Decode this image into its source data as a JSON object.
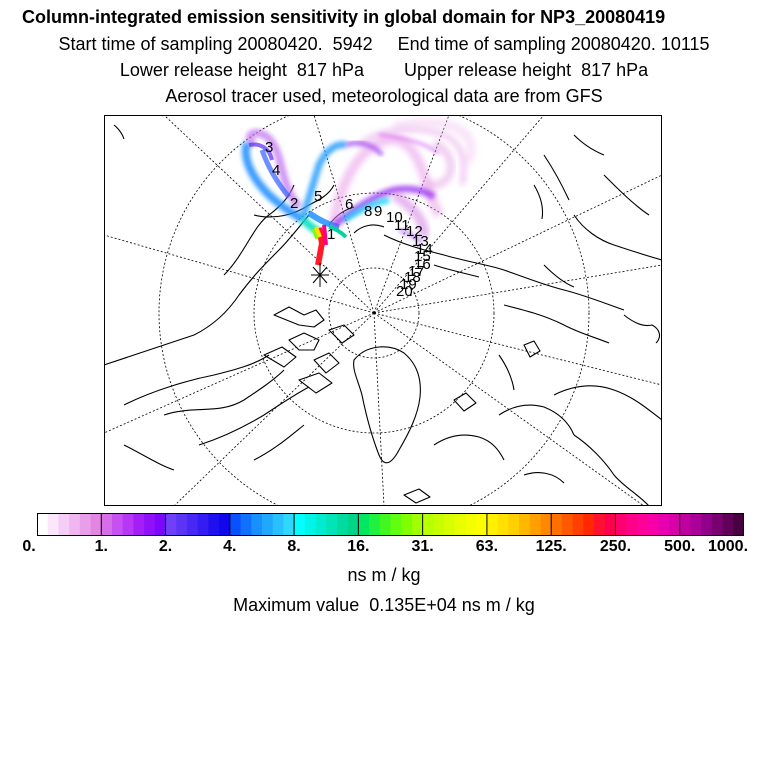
{
  "header": {
    "title": "Column-integrated emission sensitivity in global domain for NP3_20080419",
    "sampling": "Start time of sampling 20080420.  5942     End time of sampling 20080420. 10115",
    "release": "Lower release height  817 hPa        Upper release height  817 hPa",
    "tracer": "Aerosol tracer used, meteorological data are from GFS"
  },
  "colorbar": {
    "ticks": [
      "0.",
      "1.",
      "2.",
      "4.",
      "8.",
      "16.",
      "31.",
      "63.",
      "125.",
      "250.",
      "500.",
      "1000."
    ],
    "colors": [
      "#ffffff",
      "#fbe6fb",
      "#f5cef5",
      "#efb6ef",
      "#e89ee8",
      "#e286e2",
      "#d66ee8",
      "#c650f0",
      "#b836f5",
      "#a41ef8",
      "#9010fa",
      "#7a08fc",
      "#7040f8",
      "#5c34f6",
      "#4828f4",
      "#341cf2",
      "#2010f0",
      "#1008ea",
      "#0a50ff",
      "#1070ff",
      "#1890ff",
      "#20a8ff",
      "#28c0ff",
      "#30d8ff",
      "#00ffff",
      "#00f4e8",
      "#00ecd0",
      "#00e4b8",
      "#00dca0",
      "#00d488",
      "#00e860",
      "#20f040",
      "#40f820",
      "#60ff10",
      "#80ff00",
      "#a0ff00",
      "#b8ff00",
      "#c8ff00",
      "#d8ff00",
      "#e8ff00",
      "#f4ff00",
      "#ffff00",
      "#fff000",
      "#ffe000",
      "#ffd000",
      "#ffb800",
      "#ffa000",
      "#ff8800",
      "#ff7000",
      "#ff5800",
      "#ff4000",
      "#ff2800",
      "#ff1030",
      "#ff0050",
      "#ff0070",
      "#ff0088",
      "#ff0098",
      "#f800a8",
      "#e800b0",
      "#d800a8",
      "#c000a0",
      "#a80098",
      "#900088",
      "#780070",
      "#600058",
      "#480040"
    ]
  },
  "map": {
    "trajectory_labels": [
      "1",
      "2",
      "3",
      "4",
      "5",
      "6",
      "8",
      "9",
      "10",
      "11",
      "12",
      "13",
      "14",
      "15",
      "16",
      "17",
      "18",
      "19",
      "20"
    ]
  },
  "units": "ns m / kg",
  "maximum": "Maximum value  0.135E+04 ns m / kg"
}
